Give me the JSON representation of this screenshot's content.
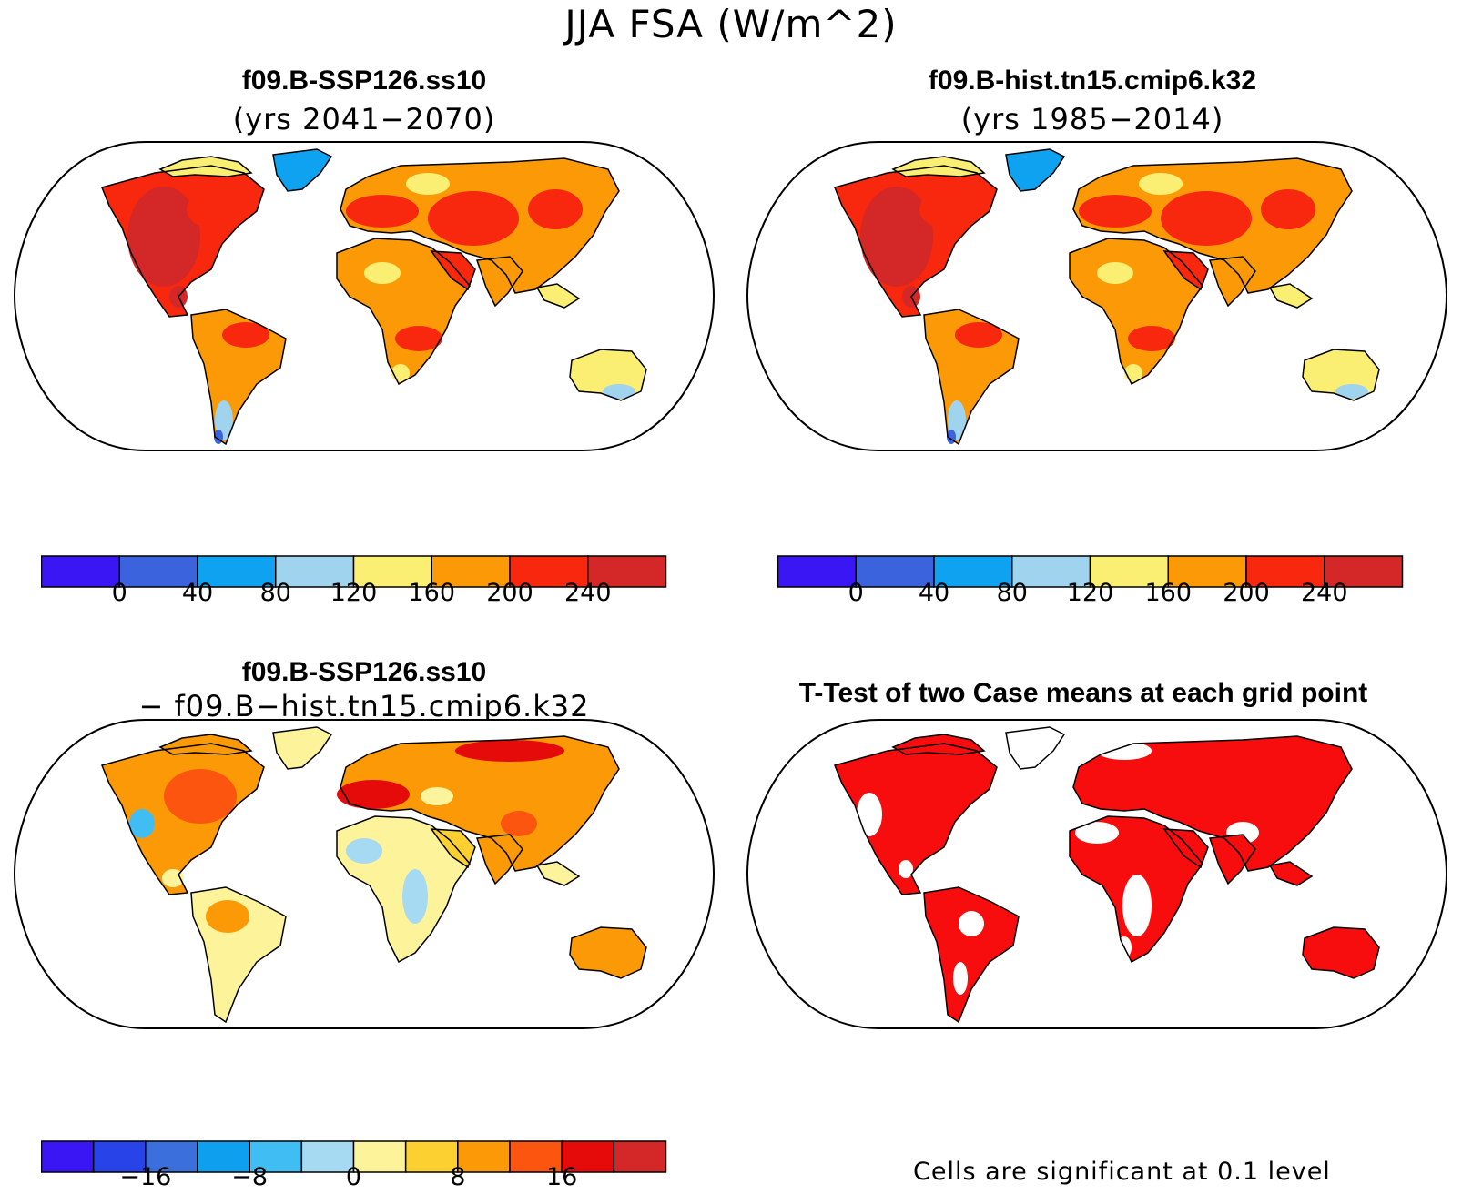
{
  "title": "JJA FSA (W/m^2)",
  "colors": {
    "abs": [
      "#3b16f5",
      "#3b63dd",
      "#0fa2f0",
      "#9fd3ee",
      "#fbef73",
      "#fb9a06",
      "#f7280d",
      "#d32827"
    ],
    "diff": [
      "#3b16f5",
      "#2843e8",
      "#3b6fdc",
      "#0f9fef",
      "#40bdf3",
      "#a6d9f2",
      "#fdf39b",
      "#fbd030",
      "#fb9a06",
      "#fb5510",
      "#e50b0b",
      "#d32827"
    ],
    "sig": "#f70d0d",
    "ocean": "#ffffff",
    "coast": "#000000"
  },
  "panels": {
    "top_left": {
      "title": "f09.B-SSP126.ss10",
      "subtitle": "(yrs 2041−2070)"
    },
    "top_right": {
      "title": "f09.B-hist.tn15.cmip6.k32",
      "subtitle": "(yrs 1985−2014)"
    },
    "bottom_left": {
      "title": "f09.B-SSP126.ss10",
      "subtitle": "− f09.B−hist.tn15.cmip6.k32"
    },
    "bottom_right": {
      "title": "T-Test of two Case means at each grid point",
      "note": "Cells are significant at 0.1 level"
    }
  },
  "colorbars": {
    "abs": {
      "ticks": [
        "0",
        "40",
        "80",
        "120",
        "160",
        "200",
        "240"
      ]
    },
    "diff": {
      "ticks": [
        "−16",
        "−8",
        "0",
        "8",
        "16"
      ]
    }
  }
}
